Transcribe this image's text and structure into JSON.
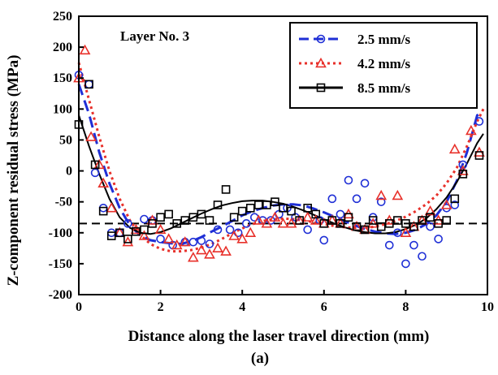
{
  "chart_data": {
    "type": "scatter",
    "annotation": "Layer No. 3",
    "caption": "(a)",
    "xlabel": "Distance along the laser travel direction (mm)",
    "ylabel": "Z-component residual stress (MPa)",
    "xlim": [
      0,
      10
    ],
    "ylim": [
      -200,
      250
    ],
    "xticks": [
      0,
      2,
      4,
      6,
      8,
      10
    ],
    "yticks": [
      -200,
      -150,
      -100,
      -50,
      0,
      50,
      100,
      150,
      200,
      250
    ],
    "reference_line_y": -85,
    "legend_position": "top-right",
    "series": [
      {
        "name": "2.5 mm/s",
        "color": "#1f2fd6",
        "marker": "circle",
        "line_style": "dashed",
        "points": [
          [
            0.0,
            155
          ],
          [
            0.25,
            140
          ],
          [
            0.4,
            -3
          ],
          [
            0.6,
            -60
          ],
          [
            0.8,
            -100
          ],
          [
            1.0,
            -100
          ],
          [
            1.2,
            -85
          ],
          [
            1.6,
            -78
          ],
          [
            1.8,
            -80
          ],
          [
            2.0,
            -110
          ],
          [
            2.3,
            -120
          ],
          [
            2.6,
            -115
          ],
          [
            2.8,
            -115
          ],
          [
            3.0,
            -113
          ],
          [
            3.2,
            -118
          ],
          [
            3.4,
            -95
          ],
          [
            3.7,
            -95
          ],
          [
            3.9,
            -100
          ],
          [
            4.1,
            -85
          ],
          [
            4.3,
            -75
          ],
          [
            4.5,
            -80
          ],
          [
            4.7,
            -80
          ],
          [
            4.9,
            -70
          ],
          [
            5.1,
            -60
          ],
          [
            5.3,
            -75
          ],
          [
            5.6,
            -95
          ],
          [
            5.9,
            -80
          ],
          [
            6.0,
            -112
          ],
          [
            6.2,
            -45
          ],
          [
            6.4,
            -70
          ],
          [
            6.6,
            -15
          ],
          [
            6.8,
            -45
          ],
          [
            7.0,
            -20
          ],
          [
            7.2,
            -75
          ],
          [
            7.4,
            -50
          ],
          [
            7.6,
            -120
          ],
          [
            7.8,
            -100
          ],
          [
            8.0,
            -150
          ],
          [
            8.2,
            -120
          ],
          [
            8.4,
            -138
          ],
          [
            8.6,
            -90
          ],
          [
            8.8,
            -110
          ],
          [
            9.0,
            -60
          ],
          [
            9.2,
            -55
          ],
          [
            9.4,
            10
          ],
          [
            9.6,
            125
          ],
          [
            9.8,
            80
          ]
        ],
        "fit": [
          [
            0,
            140
          ],
          [
            0.25,
            92
          ],
          [
            0.5,
            30
          ],
          [
            0.75,
            -20
          ],
          [
            1.0,
            -60
          ],
          [
            1.25,
            -88
          ],
          [
            1.5,
            -104
          ],
          [
            1.75,
            -112
          ],
          [
            2.0,
            -115
          ],
          [
            2.25,
            -117
          ],
          [
            2.5,
            -118
          ],
          [
            2.75,
            -114
          ],
          [
            3.0,
            -107
          ],
          [
            3.25,
            -98
          ],
          [
            3.5,
            -90
          ],
          [
            3.75,
            -81
          ],
          [
            4.0,
            -72
          ],
          [
            4.25,
            -65
          ],
          [
            4.5,
            -60
          ],
          [
            4.75,
            -56
          ],
          [
            5.0,
            -54
          ],
          [
            5.25,
            -54
          ],
          [
            5.5,
            -56
          ],
          [
            5.75,
            -61
          ],
          [
            6.0,
            -67
          ],
          [
            6.25,
            -74
          ],
          [
            6.5,
            -81
          ],
          [
            6.75,
            -88
          ],
          [
            7.0,
            -94
          ],
          [
            7.25,
            -98
          ],
          [
            7.5,
            -101
          ],
          [
            7.75,
            -102
          ],
          [
            8.0,
            -100
          ],
          [
            8.25,
            -95
          ],
          [
            8.5,
            -86
          ],
          [
            8.75,
            -72
          ],
          [
            9.0,
            -50
          ],
          [
            9.25,
            -16
          ],
          [
            9.5,
            30
          ],
          [
            9.75,
            90
          ],
          [
            9.9,
            95
          ]
        ]
      },
      {
        "name": "4.2 mm/s",
        "color": "#e8302a",
        "marker": "triangle",
        "line_style": "dotted",
        "points": [
          [
            0.0,
            150
          ],
          [
            0.15,
            195
          ],
          [
            0.3,
            55
          ],
          [
            0.5,
            10
          ],
          [
            0.6,
            -20
          ],
          [
            0.8,
            -60
          ],
          [
            1.0,
            -100
          ],
          [
            1.2,
            -115
          ],
          [
            1.4,
            -95
          ],
          [
            1.6,
            -105
          ],
          [
            1.8,
            -80
          ],
          [
            2.0,
            -95
          ],
          [
            2.2,
            -110
          ],
          [
            2.4,
            -120
          ],
          [
            2.6,
            -115
          ],
          [
            2.8,
            -140
          ],
          [
            3.0,
            -128
          ],
          [
            3.2,
            -135
          ],
          [
            3.4,
            -125
          ],
          [
            3.6,
            -130
          ],
          [
            3.8,
            -105
          ],
          [
            4.0,
            -110
          ],
          [
            4.2,
            -100
          ],
          [
            4.4,
            -80
          ],
          [
            4.6,
            -85
          ],
          [
            4.8,
            -75
          ],
          [
            5.0,
            -85
          ],
          [
            5.2,
            -85
          ],
          [
            5.4,
            -80
          ],
          [
            5.6,
            -75
          ],
          [
            5.8,
            -80
          ],
          [
            6.0,
            -85
          ],
          [
            6.2,
            -80
          ],
          [
            6.4,
            -85
          ],
          [
            6.6,
            -70
          ],
          [
            6.8,
            -90
          ],
          [
            7.0,
            -95
          ],
          [
            7.2,
            -85
          ],
          [
            7.4,
            -40
          ],
          [
            7.6,
            -80
          ],
          [
            7.8,
            -40
          ],
          [
            8.0,
            -100
          ],
          [
            8.2,
            -90
          ],
          [
            8.4,
            -80
          ],
          [
            8.6,
            -65
          ],
          [
            8.8,
            -80
          ],
          [
            9.0,
            -55
          ],
          [
            9.2,
            35
          ],
          [
            9.4,
            0
          ],
          [
            9.6,
            65
          ],
          [
            9.8,
            30
          ]
        ],
        "fit": [
          [
            0,
            175
          ],
          [
            0.25,
            115
          ],
          [
            0.5,
            55
          ],
          [
            0.75,
            0
          ],
          [
            1.0,
            -45
          ],
          [
            1.25,
            -80
          ],
          [
            1.5,
            -103
          ],
          [
            1.75,
            -118
          ],
          [
            2.0,
            -126
          ],
          [
            2.25,
            -130
          ],
          [
            2.5,
            -130
          ],
          [
            2.75,
            -128
          ],
          [
            3.0,
            -124
          ],
          [
            3.25,
            -118
          ],
          [
            3.5,
            -110
          ],
          [
            3.75,
            -101
          ],
          [
            4.0,
            -93
          ],
          [
            4.25,
            -86
          ],
          [
            4.5,
            -81
          ],
          [
            4.75,
            -78
          ],
          [
            5.0,
            -77
          ],
          [
            5.25,
            -78
          ],
          [
            5.5,
            -80
          ],
          [
            5.75,
            -83
          ],
          [
            6.0,
            -86
          ],
          [
            6.25,
            -89
          ],
          [
            6.5,
            -91
          ],
          [
            6.75,
            -92
          ],
          [
            7.0,
            -92
          ],
          [
            7.25,
            -90
          ],
          [
            7.5,
            -86
          ],
          [
            7.75,
            -81
          ],
          [
            8.0,
            -74
          ],
          [
            8.25,
            -65
          ],
          [
            8.5,
            -54
          ],
          [
            8.75,
            -40
          ],
          [
            9.0,
            -20
          ],
          [
            9.25,
            5
          ],
          [
            9.5,
            40
          ],
          [
            9.75,
            80
          ],
          [
            9.9,
            100
          ]
        ]
      },
      {
        "name": "8.5 mm/s",
        "color": "#000000",
        "marker": "square",
        "line_style": "solid",
        "points": [
          [
            0.0,
            75
          ],
          [
            0.25,
            140
          ],
          [
            0.4,
            10
          ],
          [
            0.6,
            -65
          ],
          [
            0.8,
            -105
          ],
          [
            1.0,
            -100
          ],
          [
            1.2,
            -110
          ],
          [
            1.4,
            -98
          ],
          [
            1.6,
            -95
          ],
          [
            1.8,
            -85
          ],
          [
            2.0,
            -75
          ],
          [
            2.2,
            -70
          ],
          [
            2.4,
            -85
          ],
          [
            2.6,
            -80
          ],
          [
            2.8,
            -75
          ],
          [
            3.0,
            -70
          ],
          [
            3.2,
            -80
          ],
          [
            3.4,
            -55
          ],
          [
            3.6,
            -30
          ],
          [
            3.8,
            -75
          ],
          [
            4.0,
            -65
          ],
          [
            4.2,
            -60
          ],
          [
            4.4,
            -55
          ],
          [
            4.6,
            -55
          ],
          [
            4.8,
            -50
          ],
          [
            5.0,
            -60
          ],
          [
            5.2,
            -65
          ],
          [
            5.4,
            -80
          ],
          [
            5.6,
            -60
          ],
          [
            5.8,
            -70
          ],
          [
            6.0,
            -85
          ],
          [
            6.2,
            -80
          ],
          [
            6.4,
            -85
          ],
          [
            6.6,
            -75
          ],
          [
            6.8,
            -90
          ],
          [
            7.0,
            -95
          ],
          [
            7.2,
            -80
          ],
          [
            7.4,
            -90
          ],
          [
            7.6,
            -85
          ],
          [
            7.8,
            -80
          ],
          [
            8.0,
            -85
          ],
          [
            8.2,
            -90
          ],
          [
            8.4,
            -80
          ],
          [
            8.6,
            -75
          ],
          [
            8.8,
            -85
          ],
          [
            9.0,
            -80
          ],
          [
            9.2,
            -45
          ],
          [
            9.4,
            -5
          ],
          [
            9.6,
            118
          ],
          [
            9.8,
            25
          ]
        ],
        "fit": [
          [
            0,
            90
          ],
          [
            0.25,
            40
          ],
          [
            0.5,
            -5
          ],
          [
            0.75,
            -45
          ],
          [
            1.0,
            -75
          ],
          [
            1.25,
            -92
          ],
          [
            1.5,
            -100
          ],
          [
            1.75,
            -102
          ],
          [
            2.0,
            -99
          ],
          [
            2.25,
            -93
          ],
          [
            2.5,
            -85
          ],
          [
            2.75,
            -77
          ],
          [
            3.0,
            -69
          ],
          [
            3.25,
            -62
          ],
          [
            3.5,
            -56
          ],
          [
            3.75,
            -52
          ],
          [
            4.0,
            -49
          ],
          [
            4.25,
            -48
          ],
          [
            4.5,
            -48
          ],
          [
            4.75,
            -50
          ],
          [
            5.0,
            -53
          ],
          [
            5.25,
            -58
          ],
          [
            5.5,
            -64
          ],
          [
            5.75,
            -71
          ],
          [
            6.0,
            -78
          ],
          [
            6.25,
            -85
          ],
          [
            6.5,
            -91
          ],
          [
            6.75,
            -96
          ],
          [
            7.0,
            -99
          ],
          [
            7.25,
            -101
          ],
          [
            7.5,
            -101
          ],
          [
            7.75,
            -99
          ],
          [
            8.0,
            -94
          ],
          [
            8.25,
            -87
          ],
          [
            8.5,
            -77
          ],
          [
            8.75,
            -62
          ],
          [
            9.0,
            -43
          ],
          [
            9.25,
            -18
          ],
          [
            9.5,
            12
          ],
          [
            9.75,
            45
          ],
          [
            9.9,
            60
          ]
        ]
      }
    ]
  }
}
